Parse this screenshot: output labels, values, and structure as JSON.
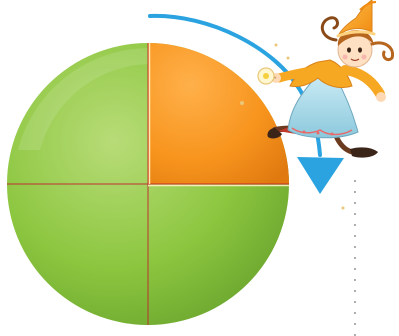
{
  "pie": {
    "fraction_shaded": 0.25,
    "quadrant_count": 4,
    "base_color": "#8cc63f",
    "highlight_color": "#f7941d",
    "divider_color": "#c1272d"
  },
  "arrow": {
    "color": "#2aa3e0"
  },
  "character": {
    "hat_color": "#f7a823",
    "hair_color": "#b5651d",
    "dress_color": "#a9d8e8",
    "wand_star_color": "#f4d03f"
  },
  "side_rule": {
    "color": "#777777"
  }
}
